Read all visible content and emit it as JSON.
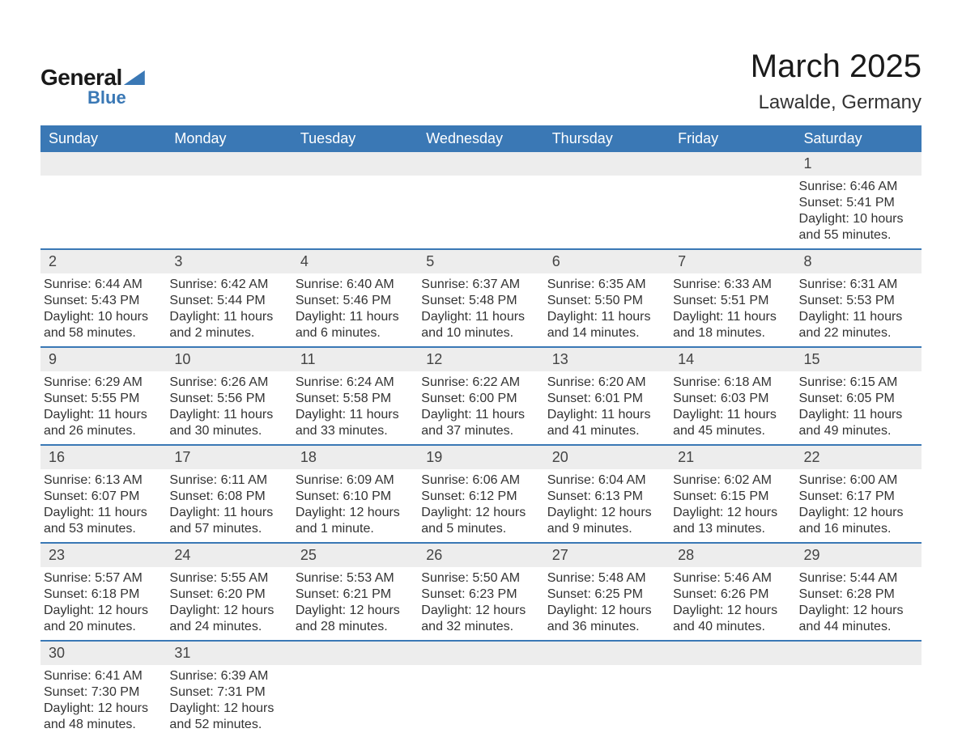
{
  "brand": {
    "general": "General",
    "blue": "Blue",
    "accent_color": "#3a78b5"
  },
  "title": {
    "month": "March 2025",
    "location": "Lawalde, Germany"
  },
  "colors": {
    "header_bg": "#3a78b5",
    "header_text": "#ffffff",
    "daynum_bg": "#ededed",
    "daynum_text": "#444444",
    "body_text": "#333333",
    "row_border": "#3a78b5",
    "background": "#ffffff"
  },
  "typography": {
    "month_title_fontsize": 40,
    "location_fontsize": 24,
    "header_fontsize": 18,
    "daynum_fontsize": 18,
    "content_fontsize": 16,
    "font_family": "Arial"
  },
  "weekdays": [
    "Sunday",
    "Monday",
    "Tuesday",
    "Wednesday",
    "Thursday",
    "Friday",
    "Saturday"
  ],
  "weeks": [
    [
      null,
      null,
      null,
      null,
      null,
      null,
      {
        "day": "1",
        "sunrise": "Sunrise: 6:46 AM",
        "sunset": "Sunset: 5:41 PM",
        "daylight1": "Daylight: 10 hours",
        "daylight2": "and 55 minutes."
      }
    ],
    [
      {
        "day": "2",
        "sunrise": "Sunrise: 6:44 AM",
        "sunset": "Sunset: 5:43 PM",
        "daylight1": "Daylight: 10 hours",
        "daylight2": "and 58 minutes."
      },
      {
        "day": "3",
        "sunrise": "Sunrise: 6:42 AM",
        "sunset": "Sunset: 5:44 PM",
        "daylight1": "Daylight: 11 hours",
        "daylight2": "and 2 minutes."
      },
      {
        "day": "4",
        "sunrise": "Sunrise: 6:40 AM",
        "sunset": "Sunset: 5:46 PM",
        "daylight1": "Daylight: 11 hours",
        "daylight2": "and 6 minutes."
      },
      {
        "day": "5",
        "sunrise": "Sunrise: 6:37 AM",
        "sunset": "Sunset: 5:48 PM",
        "daylight1": "Daylight: 11 hours",
        "daylight2": "and 10 minutes."
      },
      {
        "day": "6",
        "sunrise": "Sunrise: 6:35 AM",
        "sunset": "Sunset: 5:50 PM",
        "daylight1": "Daylight: 11 hours",
        "daylight2": "and 14 minutes."
      },
      {
        "day": "7",
        "sunrise": "Sunrise: 6:33 AM",
        "sunset": "Sunset: 5:51 PM",
        "daylight1": "Daylight: 11 hours",
        "daylight2": "and 18 minutes."
      },
      {
        "day": "8",
        "sunrise": "Sunrise: 6:31 AM",
        "sunset": "Sunset: 5:53 PM",
        "daylight1": "Daylight: 11 hours",
        "daylight2": "and 22 minutes."
      }
    ],
    [
      {
        "day": "9",
        "sunrise": "Sunrise: 6:29 AM",
        "sunset": "Sunset: 5:55 PM",
        "daylight1": "Daylight: 11 hours",
        "daylight2": "and 26 minutes."
      },
      {
        "day": "10",
        "sunrise": "Sunrise: 6:26 AM",
        "sunset": "Sunset: 5:56 PM",
        "daylight1": "Daylight: 11 hours",
        "daylight2": "and 30 minutes."
      },
      {
        "day": "11",
        "sunrise": "Sunrise: 6:24 AM",
        "sunset": "Sunset: 5:58 PM",
        "daylight1": "Daylight: 11 hours",
        "daylight2": "and 33 minutes."
      },
      {
        "day": "12",
        "sunrise": "Sunrise: 6:22 AM",
        "sunset": "Sunset: 6:00 PM",
        "daylight1": "Daylight: 11 hours",
        "daylight2": "and 37 minutes."
      },
      {
        "day": "13",
        "sunrise": "Sunrise: 6:20 AM",
        "sunset": "Sunset: 6:01 PM",
        "daylight1": "Daylight: 11 hours",
        "daylight2": "and 41 minutes."
      },
      {
        "day": "14",
        "sunrise": "Sunrise: 6:18 AM",
        "sunset": "Sunset: 6:03 PM",
        "daylight1": "Daylight: 11 hours",
        "daylight2": "and 45 minutes."
      },
      {
        "day": "15",
        "sunrise": "Sunrise: 6:15 AM",
        "sunset": "Sunset: 6:05 PM",
        "daylight1": "Daylight: 11 hours",
        "daylight2": "and 49 minutes."
      }
    ],
    [
      {
        "day": "16",
        "sunrise": "Sunrise: 6:13 AM",
        "sunset": "Sunset: 6:07 PM",
        "daylight1": "Daylight: 11 hours",
        "daylight2": "and 53 minutes."
      },
      {
        "day": "17",
        "sunrise": "Sunrise: 6:11 AM",
        "sunset": "Sunset: 6:08 PM",
        "daylight1": "Daylight: 11 hours",
        "daylight2": "and 57 minutes."
      },
      {
        "day": "18",
        "sunrise": "Sunrise: 6:09 AM",
        "sunset": "Sunset: 6:10 PM",
        "daylight1": "Daylight: 12 hours",
        "daylight2": "and 1 minute."
      },
      {
        "day": "19",
        "sunrise": "Sunrise: 6:06 AM",
        "sunset": "Sunset: 6:12 PM",
        "daylight1": "Daylight: 12 hours",
        "daylight2": "and 5 minutes."
      },
      {
        "day": "20",
        "sunrise": "Sunrise: 6:04 AM",
        "sunset": "Sunset: 6:13 PM",
        "daylight1": "Daylight: 12 hours",
        "daylight2": "and 9 minutes."
      },
      {
        "day": "21",
        "sunrise": "Sunrise: 6:02 AM",
        "sunset": "Sunset: 6:15 PM",
        "daylight1": "Daylight: 12 hours",
        "daylight2": "and 13 minutes."
      },
      {
        "day": "22",
        "sunrise": "Sunrise: 6:00 AM",
        "sunset": "Sunset: 6:17 PM",
        "daylight1": "Daylight: 12 hours",
        "daylight2": "and 16 minutes."
      }
    ],
    [
      {
        "day": "23",
        "sunrise": "Sunrise: 5:57 AM",
        "sunset": "Sunset: 6:18 PM",
        "daylight1": "Daylight: 12 hours",
        "daylight2": "and 20 minutes."
      },
      {
        "day": "24",
        "sunrise": "Sunrise: 5:55 AM",
        "sunset": "Sunset: 6:20 PM",
        "daylight1": "Daylight: 12 hours",
        "daylight2": "and 24 minutes."
      },
      {
        "day": "25",
        "sunrise": "Sunrise: 5:53 AM",
        "sunset": "Sunset: 6:21 PM",
        "daylight1": "Daylight: 12 hours",
        "daylight2": "and 28 minutes."
      },
      {
        "day": "26",
        "sunrise": "Sunrise: 5:50 AM",
        "sunset": "Sunset: 6:23 PM",
        "daylight1": "Daylight: 12 hours",
        "daylight2": "and 32 minutes."
      },
      {
        "day": "27",
        "sunrise": "Sunrise: 5:48 AM",
        "sunset": "Sunset: 6:25 PM",
        "daylight1": "Daylight: 12 hours",
        "daylight2": "and 36 minutes."
      },
      {
        "day": "28",
        "sunrise": "Sunrise: 5:46 AM",
        "sunset": "Sunset: 6:26 PM",
        "daylight1": "Daylight: 12 hours",
        "daylight2": "and 40 minutes."
      },
      {
        "day": "29",
        "sunrise": "Sunrise: 5:44 AM",
        "sunset": "Sunset: 6:28 PM",
        "daylight1": "Daylight: 12 hours",
        "daylight2": "and 44 minutes."
      }
    ],
    [
      {
        "day": "30",
        "sunrise": "Sunrise: 6:41 AM",
        "sunset": "Sunset: 7:30 PM",
        "daylight1": "Daylight: 12 hours",
        "daylight2": "and 48 minutes."
      },
      {
        "day": "31",
        "sunrise": "Sunrise: 6:39 AM",
        "sunset": "Sunset: 7:31 PM",
        "daylight1": "Daylight: 12 hours",
        "daylight2": "and 52 minutes."
      },
      null,
      null,
      null,
      null,
      null
    ]
  ]
}
